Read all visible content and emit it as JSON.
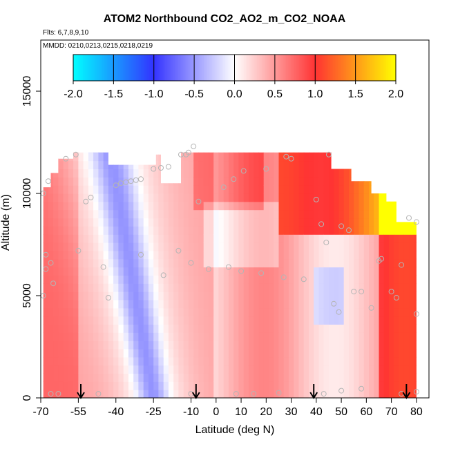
{
  "title": "ATOM2 Northbound CO2_AO2_m_CO2_NOAA",
  "flights_line": "Flts: 6,7,8,9,10",
  "mmdd_line": "MMDD: 0210,0213,0215,0218,0219",
  "chart_data": {
    "type": "heatmap",
    "title": "ATOM2 Northbound CO2_AO2_m_CO2_NOAA",
    "xlabel": "Latitude (deg N)",
    "ylabel": "Altitude (m)",
    "xlim": [
      -70,
      85
    ],
    "ylim": [
      0,
      17500
    ],
    "x_ticks": [
      -70,
      -55,
      -40,
      -25,
      -10,
      0,
      10,
      20,
      30,
      40,
      50,
      60,
      70,
      80
    ],
    "x_tick_labels": [
      "-70",
      "-55",
      "-40",
      "-25",
      "-10",
      "0",
      "10",
      "20",
      "30",
      "40",
      "50",
      "60",
      "70",
      "80"
    ],
    "y_ticks": [
      0,
      5000,
      10000,
      15000
    ],
    "y_tick_labels": [
      "0",
      "5000",
      "10000",
      "15000"
    ],
    "colorbar": {
      "range": [
        -2.0,
        2.0
      ],
      "ticks": [
        -2.0,
        -1.5,
        -1.0,
        -0.5,
        0.0,
        0.5,
        1.0,
        1.5,
        2.0
      ],
      "tick_labels": [
        "-2.0",
        "-1.5",
        "-1.0",
        "-0.5",
        "0.0",
        "0.5",
        "1.0",
        "1.5",
        "2.0"
      ],
      "colors": {
        "-2.0": "#00ffff",
        "-1.0": "#3333ff",
        "0.0": "#ffffff",
        "1.0": "#ff3333",
        "2.0": "#ffff00"
      }
    },
    "profile_markers_lat": [
      -54,
      -8,
      39,
      76
    ],
    "column_tops": [
      {
        "lat": [
          -69,
          -66
        ],
        "top": 10300
      },
      {
        "lat": [
          -66,
          -63
        ],
        "top": 11000
      },
      {
        "lat": [
          -63,
          -57
        ],
        "top": 11700
      },
      {
        "lat": [
          -57,
          -43
        ],
        "top": 12000
      },
      {
        "lat": [
          -43,
          -24
        ],
        "top": 11400
      },
      {
        "lat": [
          -24,
          -22
        ],
        "top": 11900
      },
      {
        "lat": [
          -22,
          -14
        ],
        "top": 10500
      },
      {
        "lat": [
          -14,
          46
        ],
        "top": 12000
      },
      {
        "lat": [
          46,
          54
        ],
        "top": 11200
      },
      {
        "lat": [
          54,
          62
        ],
        "top": 10600
      },
      {
        "lat": [
          62,
          68
        ],
        "top": 10000
      },
      {
        "lat": [
          68,
          72
        ],
        "top": 9600
      },
      {
        "lat": [
          72,
          80
        ],
        "top": 8600
      }
    ],
    "field_notes": "Gridded difference field, values mostly 0.2 to 1.0 (red) with a negative band about -0.3 to -0.6 (blue) running diagonally from about (-40 deg, 10500 m) down to (-25 deg, 0 m).",
    "sample_points": [
      {
        "lat": -69,
        "alt": 10000
      },
      {
        "lat": -67,
        "alt": 10600
      },
      {
        "lat": -68,
        "alt": 7000
      },
      {
        "lat": -68,
        "alt": 6300
      },
      {
        "lat": -66,
        "alt": 6600
      },
      {
        "lat": -65,
        "alt": 5600
      },
      {
        "lat": -69,
        "alt": 5000
      },
      {
        "lat": -66,
        "alt": 200
      },
      {
        "lat": -63,
        "alt": 200
      },
      {
        "lat": -60,
        "alt": 11700
      },
      {
        "lat": -56,
        "alt": 11900
      },
      {
        "lat": -52,
        "alt": 9600
      },
      {
        "lat": -50,
        "alt": 9800
      },
      {
        "lat": -55,
        "alt": 7200
      },
      {
        "lat": -45,
        "alt": 6400
      },
      {
        "lat": -43,
        "alt": 4900
      },
      {
        "lat": -47,
        "alt": 200
      },
      {
        "lat": -40,
        "alt": 10400
      },
      {
        "lat": -38,
        "alt": 10500
      },
      {
        "lat": -36,
        "alt": 10550
      },
      {
        "lat": -34,
        "alt": 10600
      },
      {
        "lat": -32,
        "alt": 10650
      },
      {
        "lat": -30,
        "alt": 10700
      },
      {
        "lat": -25,
        "alt": 11200
      },
      {
        "lat": -22,
        "alt": 11250
      },
      {
        "lat": -19,
        "alt": 11300
      },
      {
        "lat": -30,
        "alt": 7000
      },
      {
        "lat": -21,
        "alt": 6000
      },
      {
        "lat": -14,
        "alt": 11900
      },
      {
        "lat": -11,
        "alt": 12000
      },
      {
        "lat": -12,
        "alt": 11900
      },
      {
        "lat": -9,
        "alt": 12300
      },
      {
        "lat": -15,
        "alt": 7200
      },
      {
        "lat": -10,
        "alt": 6600
      },
      {
        "lat": -10,
        "alt": 200
      },
      {
        "lat": -7,
        "alt": 9600
      },
      {
        "lat": -3,
        "alt": 6300
      },
      {
        "lat": 3,
        "alt": 10300
      },
      {
        "lat": 7,
        "alt": 10700
      },
      {
        "lat": 11,
        "alt": 11100
      },
      {
        "lat": 20,
        "alt": 11200
      },
      {
        "lat": 28,
        "alt": 11800
      },
      {
        "lat": 30,
        "alt": 11700
      },
      {
        "lat": 45,
        "alt": 11900
      },
      {
        "lat": 5,
        "alt": 6400
      },
      {
        "lat": 10,
        "alt": 6200
      },
      {
        "lat": 18,
        "alt": 6100
      },
      {
        "lat": 27,
        "alt": 5900
      },
      {
        "lat": 35,
        "alt": 5800
      },
      {
        "lat": 8,
        "alt": 200
      },
      {
        "lat": 15,
        "alt": 200
      },
      {
        "lat": 25,
        "alt": 250
      },
      {
        "lat": 40,
        "alt": 9700
      },
      {
        "lat": 42,
        "alt": 8500
      },
      {
        "lat": 44,
        "alt": 7600
      },
      {
        "lat": 50,
        "alt": 8400
      },
      {
        "lat": 53,
        "alt": 8200
      },
      {
        "lat": 47,
        "alt": 4600
      },
      {
        "lat": 49,
        "alt": 4200
      },
      {
        "lat": 55,
        "alt": 5200
      },
      {
        "lat": 58,
        "alt": 5200
      },
      {
        "lat": 62,
        "alt": 4400
      },
      {
        "lat": 65,
        "alt": 6700
      },
      {
        "lat": 66,
        "alt": 6800
      },
      {
        "lat": 70,
        "alt": 5200
      },
      {
        "lat": 72,
        "alt": 4900
      },
      {
        "lat": 74,
        "alt": 6500
      },
      {
        "lat": 77,
        "alt": 8800
      },
      {
        "lat": 80,
        "alt": 8600
      },
      {
        "lat": 80,
        "alt": 4100
      },
      {
        "lat": 74,
        "alt": 200
      },
      {
        "lat": 80,
        "alt": 300
      },
      {
        "lat": 58,
        "alt": 450
      },
      {
        "lat": 50,
        "alt": 350
      },
      {
        "lat": 43,
        "alt": 200
      }
    ]
  }
}
